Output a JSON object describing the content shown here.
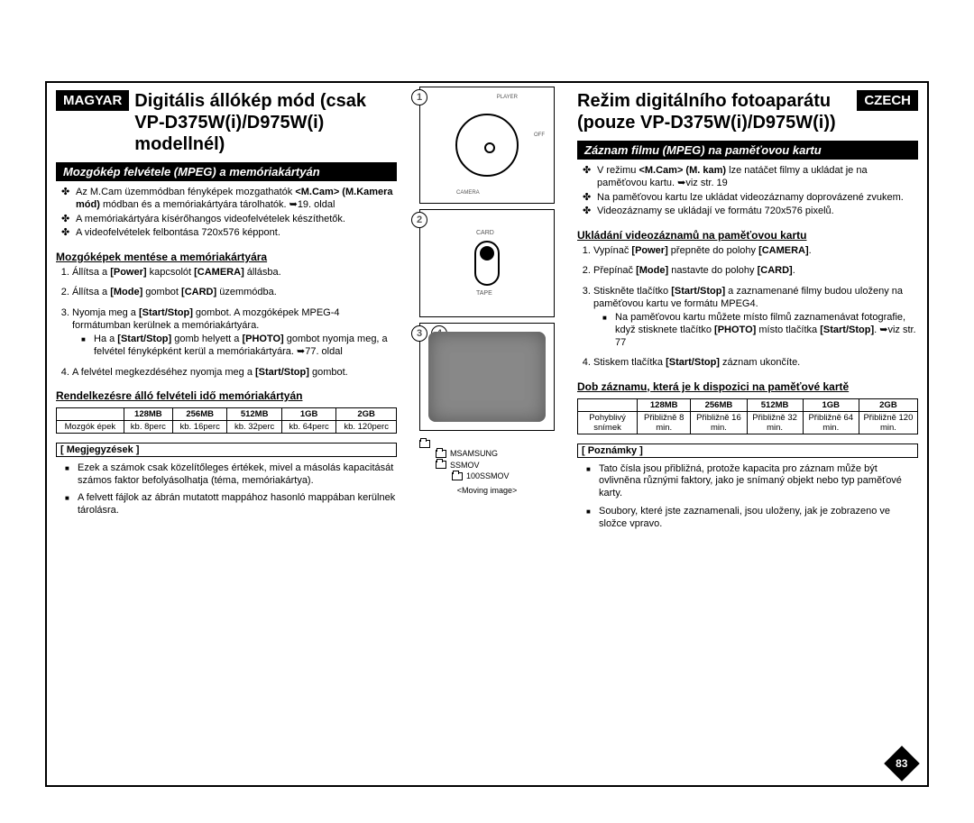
{
  "left": {
    "lang": "MAGYAR",
    "title": "Digitális állókép mód (csak VP-D375W(i)/D975W(i) modellnél)",
    "section": "Mozgókép felvétele (MPEG) a memóriakártyán",
    "intro": [
      "Az M.Cam üzemmódban fényképek mozgathatók <b>&lt;M.Cam&gt; (M.Kamera mód)</b> módban és a memóriakártyára tárolhatók. ➥19. oldal",
      "A memóriakártyára kísérőhangos videofelvételek készíthetők.",
      "A videofelvételek felbontása 720x576 képpont."
    ],
    "sub1": "Mozgóképek mentése a memóriakártyára",
    "steps": [
      "Állítsa a <b>[Power]</b> kapcsolót <b>[CAMERA]</b> állásba.",
      "Állítsa a <b>[Mode]</b> gombot <b>[CARD]</b> üzemmódba.",
      "Nyomja meg a <b>[Start/Stop]</b> gombot. A mozgóképek MPEG-4 formátumban kerülnek a memóriakártyára.",
      "A felvétel megkezdéséhez nyomja meg a <b>[Start/Stop]</b> gombot."
    ],
    "step3_note": "Ha a <b>[Start/Stop]</b> gomb helyett a <b>[PHOTO]</b> gombot nyomja meg, a felvétel fényképként kerül a memóriakártyára. ➥77. oldal",
    "sub2": "Rendelkezésre álló felvételi idő memóriakártyán",
    "table": {
      "headers": [
        "",
        "128MB",
        "256MB",
        "512MB",
        "1GB",
        "2GB"
      ],
      "row_label": "Mozgók épek",
      "cells": [
        "kb. 8perc",
        "kb. 16perc",
        "kb. 32perc",
        "kb. 64perc",
        "kb. 120perc"
      ]
    },
    "notes_label": "[ Megjegyzések ]",
    "notes": [
      "Ezek a számok csak közelítőleges értékek, mivel a másolás kapacitását számos faktor befolyásolhatja (téma, memóriakártya).",
      "A felvett fájlok az ábrán mutatott mappához hasonló mappában kerülnek tárolásra."
    ]
  },
  "right": {
    "lang": "CZECH",
    "title": "Režim digitálního fotoaparátu (pouze VP-D375W(i)/D975W(i))",
    "section": "Záznam filmu (MPEG) na paměťovou kartu",
    "intro": [
      "V režimu <b>&lt;M.Cam&gt; (M. kam)</b> lze natáčet filmy a ukládat je na paměťovou kartu. ➥viz str. 19",
      "Na paměťovou kartu lze ukládat videozáznamy doprovázené zvukem.",
      "Videozáznamy se ukládají ve formátu 720x576 pixelů."
    ],
    "sub1": "Ukládání videozáznamů na paměťovou kartu",
    "steps": [
      "Vypínač <b>[Power]</b> přepněte do polohy <b>[CAMERA]</b>.",
      "Přepínač <b>[Mode]</b> nastavte do polohy <b>[CARD]</b>.",
      "Stiskněte tlačítko <b>[Start/Stop]</b> a zaznamenané filmy budou uloženy na paměťovou kartu ve formátu MPEG4.",
      "Stiskem tlačítka <b>[Start/Stop]</b> záznam ukončíte."
    ],
    "step3_note": "Na paměťovou kartu můžete místo filmů zaznamenávat fotografie, když stisknete tlačítko <b>[PHOTO]</b> místo tlačítka <b>[Start/Stop]</b>. ➥viz str. 77",
    "sub2": "Dob záznamu, která je k dispozici na paměťové kartě",
    "table": {
      "headers": [
        "",
        "128MB",
        "256MB",
        "512MB",
        "1GB",
        "2GB"
      ],
      "row_label": "Pohyblivý snímek",
      "cells": [
        "Přibližně 8 min.",
        "Přibližně 16 min.",
        "Přibližně 32 min.",
        "Přibližně 64 min.",
        "Přibližně 120 min."
      ]
    },
    "notes_label": "[ Poznámky ]",
    "notes": [
      "Tato čísla jsou přibližná, protože kapacita pro záznam může být ovlivněna různými faktory, jako je snímaný objekt nebo typ paměťové karty.",
      "Soubory, které jste zaznamenali, jsou uloženy, jak je zobrazeno ve složce vpravo."
    ]
  },
  "center": {
    "d1_labels": {
      "player": "PLAYER",
      "off": "OFF",
      "camera": "CAMERA"
    },
    "d2_labels": {
      "card": "CARD",
      "tape": "TAPE"
    },
    "folders": [
      "MSAMSUNG",
      "SSMOV",
      "100SSMOV"
    ],
    "caption": "<Moving image>"
  },
  "pagenum": "83"
}
